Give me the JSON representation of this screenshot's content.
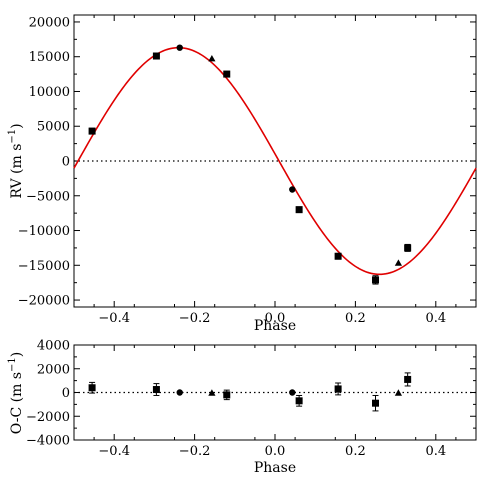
{
  "chart_data": [
    {
      "type": "scatter",
      "xlabel": "Phase",
      "ylabel": "RV (m s$^{-1}$)",
      "ylabel_text": "RV (m s",
      "ylabel_sup": "−1",
      "ylabel_close": ")",
      "xlim": [
        -0.5,
        0.5
      ],
      "ylim": [
        -21000,
        21000
      ],
      "x_ticks": [
        -0.4,
        -0.2,
        0.0,
        0.2,
        0.4
      ],
      "x_tick_labels": [
        "−0.4",
        "−0.2",
        "0.0",
        "0.2",
        "0.4"
      ],
      "y_ticks": [
        -20000,
        -15000,
        -10000,
        -5000,
        0,
        5000,
        10000,
        15000,
        20000
      ],
      "y_tick_labels": [
        "−20000",
        "−15000",
        "−10000",
        "−5000",
        "0",
        "5000",
        "10000",
        "15000",
        "20000"
      ],
      "grid": false,
      "reference_line": {
        "y": 0,
        "style": "dotted"
      },
      "model_curve": {
        "color": "#e00000",
        "type": "sinusoid",
        "amplitude": 16300,
        "phase_zero_crossing": 0.01,
        "direction": "decreasing"
      },
      "series": [
        {
          "marker": "square",
          "points": [
            {
              "x": -0.455,
              "y": 4300,
              "err": 400
            },
            {
              "x": -0.295,
              "y": 15100,
              "err": 400
            },
            {
              "x": -0.12,
              "y": 12500,
              "err": 400
            },
            {
              "x": 0.06,
              "y": -7000,
              "err": 400
            },
            {
              "x": 0.157,
              "y": -13700,
              "err": 400
            },
            {
              "x": 0.25,
              "y": -17100,
              "err": 600
            },
            {
              "x": 0.33,
              "y": -12500,
              "err": 500
            }
          ]
        },
        {
          "marker": "circle",
          "points": [
            {
              "x": -0.237,
              "y": 16300,
              "err": 0
            },
            {
              "x": 0.043,
              "y": -4100,
              "err": 0
            }
          ]
        },
        {
          "marker": "triangle",
          "points": [
            {
              "x": -0.157,
              "y": 14700,
              "err": 0
            },
            {
              "x": 0.307,
              "y": -14700,
              "err": 0
            }
          ]
        }
      ]
    },
    {
      "type": "scatter",
      "xlabel": "Phase",
      "ylabel": "O-C (m s$^{-1}$)",
      "ylabel_text": "O-C (m s",
      "ylabel_sup": "−1",
      "ylabel_close": ")",
      "xlim": [
        -0.5,
        0.5
      ],
      "ylim": [
        -4000,
        4000
      ],
      "x_ticks": [
        -0.4,
        -0.2,
        0.0,
        0.2,
        0.4
      ],
      "x_tick_labels": [
        "−0.4",
        "−0.2",
        "0.0",
        "0.2",
        "0.4"
      ],
      "y_ticks": [
        -4000,
        -2000,
        0,
        2000,
        4000
      ],
      "y_tick_labels": [
        "−4000",
        "−2000",
        "0",
        "2000",
        "4000"
      ],
      "grid": false,
      "reference_line": {
        "y": 0,
        "style": "dotted"
      },
      "series": [
        {
          "marker": "square",
          "points": [
            {
              "x": -0.455,
              "y": 400,
              "err": 450
            },
            {
              "x": -0.295,
              "y": 250,
              "err": 500
            },
            {
              "x": -0.12,
              "y": -200,
              "err": 400
            },
            {
              "x": 0.06,
              "y": -700,
              "err": 450
            },
            {
              "x": 0.157,
              "y": 300,
              "err": 500
            },
            {
              "x": 0.25,
              "y": -900,
              "err": 650
            },
            {
              "x": 0.33,
              "y": 1100,
              "err": 550
            }
          ]
        },
        {
          "marker": "circle",
          "points": [
            {
              "x": -0.237,
              "y": 0,
              "err": 0
            },
            {
              "x": 0.043,
              "y": 0,
              "err": 0
            }
          ]
        },
        {
          "marker": "triangle",
          "points": [
            {
              "x": -0.157,
              "y": -50,
              "err": 0
            },
            {
              "x": 0.307,
              "y": -50,
              "err": 0
            }
          ]
        }
      ]
    }
  ]
}
